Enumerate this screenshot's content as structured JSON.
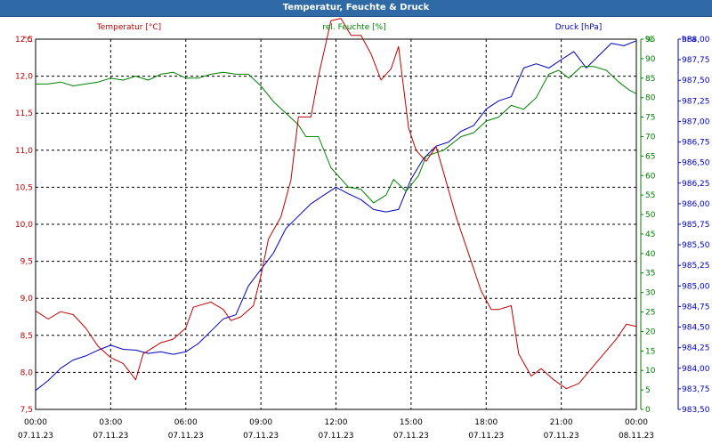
{
  "window": {
    "title": "Temperatur, Feuchte & Druck"
  },
  "colors": {
    "temperature": "#c00000",
    "humidity": "#008000",
    "pressure": "#0000c0",
    "grid": "#000000",
    "titlebar": "#2f6aa6"
  },
  "chart_data": {
    "type": "line",
    "title": "Temperatur, Feuchte & Druck",
    "grid": true,
    "x_ticks": [
      {
        "time": "00:00",
        "date": "07.11.23"
      },
      {
        "time": "03:00",
        "date": "07.11.23"
      },
      {
        "time": "06:00",
        "date": "07.11.23"
      },
      {
        "time": "09:00",
        "date": "07.11.23"
      },
      {
        "time": "12:00",
        "date": "07.11.23"
      },
      {
        "time": "15:00",
        "date": "07.11.23"
      },
      {
        "time": "18:00",
        "date": "07.11.23"
      },
      {
        "time": "21:00",
        "date": "07.11.23"
      },
      {
        "time": "00:00",
        "date": "08.11.23"
      }
    ],
    "x_range_hours": [
      0,
      24
    ],
    "axes": {
      "temperature": {
        "unit": "°C",
        "min": 7.5,
        "max": 12.5,
        "step": 0.5,
        "ticks": [
          "7,5",
          "8,0",
          "8,5",
          "9,0",
          "9,5",
          "10,0",
          "10,5",
          "11,0",
          "11,5",
          "12,0",
          "12,5"
        ]
      },
      "humidity": {
        "unit": "%",
        "min": 0,
        "max": 95,
        "step": 5,
        "ticks": [
          "0",
          "5",
          "10",
          "15",
          "20",
          "25",
          "30",
          "35",
          "40",
          "45",
          "50",
          "55",
          "60",
          "65",
          "70",
          "75",
          "80",
          "85",
          "90",
          "95"
        ]
      },
      "pressure": {
        "unit": "hPa",
        "min": 983.5,
        "max": 988.0,
        "step": 0.25,
        "ticks": [
          "983,50",
          "983,75",
          "984,00",
          "984,25",
          "984,50",
          "984,75",
          "985,00",
          "985,25",
          "985,50",
          "985,75",
          "986,00",
          "986,25",
          "986,50",
          "986,75",
          "987,00",
          "987,25",
          "987,50",
          "987,75",
          "988,00"
        ]
      }
    },
    "series": [
      {
        "name": "Temperatur [°C]",
        "axis": "temperature",
        "points": [
          [
            0,
            8.83
          ],
          [
            0.5,
            8.72
          ],
          [
            1,
            8.82
          ],
          [
            1.5,
            8.78
          ],
          [
            2,
            8.6
          ],
          [
            2.5,
            8.35
          ],
          [
            3,
            8.2
          ],
          [
            3.5,
            8.12
          ],
          [
            4,
            7.9
          ],
          [
            4.3,
            8.25
          ],
          [
            5,
            8.4
          ],
          [
            5.5,
            8.45
          ],
          [
            6,
            8.6
          ],
          [
            6.3,
            8.88
          ],
          [
            7,
            8.95
          ],
          [
            7.5,
            8.85
          ],
          [
            7.8,
            8.7
          ],
          [
            8.2,
            8.75
          ],
          [
            8.7,
            8.9
          ],
          [
            9,
            9.3
          ],
          [
            9.3,
            9.8
          ],
          [
            9.8,
            10.1
          ],
          [
            10.2,
            10.6
          ],
          [
            10.5,
            11.45
          ],
          [
            11,
            11.45
          ],
          [
            11.3,
            12.0
          ],
          [
            11.8,
            12.75
          ],
          [
            12.2,
            12.78
          ],
          [
            12.6,
            12.55
          ],
          [
            13,
            12.55
          ],
          [
            13.4,
            12.3
          ],
          [
            13.8,
            11.95
          ],
          [
            14.2,
            12.1
          ],
          [
            14.5,
            12.4
          ],
          [
            14.9,
            11.3
          ],
          [
            15.2,
            11.0
          ],
          [
            15.6,
            10.85
          ],
          [
            16,
            11.05
          ],
          [
            16.3,
            10.7
          ],
          [
            16.8,
            10.1
          ],
          [
            17.3,
            9.6
          ],
          [
            17.8,
            9.1
          ],
          [
            18.2,
            8.85
          ],
          [
            18.5,
            8.85
          ],
          [
            19,
            8.9
          ],
          [
            19.3,
            8.25
          ],
          [
            19.8,
            7.95
          ],
          [
            20.2,
            8.05
          ],
          [
            20.7,
            7.9
          ],
          [
            21.2,
            7.78
          ],
          [
            21.7,
            7.85
          ],
          [
            22.2,
            8.05
          ],
          [
            22.7,
            8.25
          ],
          [
            23.2,
            8.45
          ],
          [
            23.6,
            8.65
          ],
          [
            24,
            8.62
          ]
        ]
      },
      {
        "name": "rel. Feuchte [%]",
        "axis": "humidity",
        "points": [
          [
            0,
            83.5
          ],
          [
            0.5,
            83.5
          ],
          [
            1,
            84
          ],
          [
            1.5,
            83
          ],
          [
            2,
            83.5
          ],
          [
            2.5,
            84
          ],
          [
            3,
            85
          ],
          [
            3.5,
            84.5
          ],
          [
            4,
            85.5
          ],
          [
            4.5,
            84.5
          ],
          [
            5,
            86
          ],
          [
            5.5,
            86.5
          ],
          [
            6,
            85
          ],
          [
            6.5,
            85
          ],
          [
            7,
            86
          ],
          [
            7.5,
            86.5
          ],
          [
            8,
            86
          ],
          [
            8.5,
            86
          ],
          [
            9,
            83
          ],
          [
            9.5,
            79
          ],
          [
            10,
            76
          ],
          [
            10.5,
            73
          ],
          [
            10.8,
            70
          ],
          [
            11.3,
            70
          ],
          [
            11.8,
            62
          ],
          [
            12.5,
            57
          ],
          [
            13,
            56.5
          ],
          [
            13.5,
            53
          ],
          [
            14,
            55
          ],
          [
            14.3,
            59
          ],
          [
            14.8,
            56
          ],
          [
            15.3,
            60
          ],
          [
            15.6,
            65
          ],
          [
            16.3,
            66.5
          ],
          [
            17,
            70
          ],
          [
            17.5,
            71
          ],
          [
            18,
            74
          ],
          [
            18.5,
            75
          ],
          [
            19,
            78
          ],
          [
            19.5,
            77
          ],
          [
            20,
            80
          ],
          [
            20.5,
            86
          ],
          [
            20.9,
            87
          ],
          [
            21.3,
            85
          ],
          [
            21.8,
            88
          ],
          [
            22.3,
            88
          ],
          [
            22.8,
            87
          ],
          [
            23.3,
            84
          ],
          [
            23.7,
            82
          ],
          [
            24,
            81
          ]
        ]
      },
      {
        "name": "Druck [hPa]",
        "axis": "pressure",
        "points": [
          [
            0,
            983.73
          ],
          [
            0.5,
            983.85
          ],
          [
            1,
            984.0
          ],
          [
            1.5,
            984.1
          ],
          [
            2,
            984.15
          ],
          [
            2.5,
            984.22
          ],
          [
            3,
            984.28
          ],
          [
            3.5,
            984.23
          ],
          [
            4,
            984.22
          ],
          [
            4.5,
            984.18
          ],
          [
            5,
            984.2
          ],
          [
            5.5,
            984.17
          ],
          [
            6,
            984.2
          ],
          [
            6.5,
            984.3
          ],
          [
            7,
            984.45
          ],
          [
            7.5,
            984.6
          ],
          [
            8,
            984.65
          ],
          [
            8.5,
            985.0
          ],
          [
            9,
            985.2
          ],
          [
            9.5,
            985.4
          ],
          [
            10,
            985.7
          ],
          [
            10.5,
            985.85
          ],
          [
            11,
            986.0
          ],
          [
            11.5,
            986.1
          ],
          [
            12,
            986.2
          ],
          [
            12.5,
            986.12
          ],
          [
            13,
            986.05
          ],
          [
            13.5,
            985.93
          ],
          [
            14,
            985.9
          ],
          [
            14.5,
            985.93
          ],
          [
            15,
            986.3
          ],
          [
            15.5,
            986.55
          ],
          [
            16,
            986.7
          ],
          [
            16.5,
            986.75
          ],
          [
            17,
            986.88
          ],
          [
            17.5,
            986.95
          ],
          [
            18,
            987.15
          ],
          [
            18.5,
            987.25
          ],
          [
            19,
            987.3
          ],
          [
            19.5,
            987.65
          ],
          [
            20,
            987.7
          ],
          [
            20.5,
            987.65
          ],
          [
            21,
            987.75
          ],
          [
            21.5,
            987.85
          ],
          [
            22,
            987.65
          ],
          [
            22.5,
            987.8
          ],
          [
            23,
            987.95
          ],
          [
            23.5,
            987.92
          ],
          [
            24,
            987.98
          ]
        ]
      }
    ]
  }
}
